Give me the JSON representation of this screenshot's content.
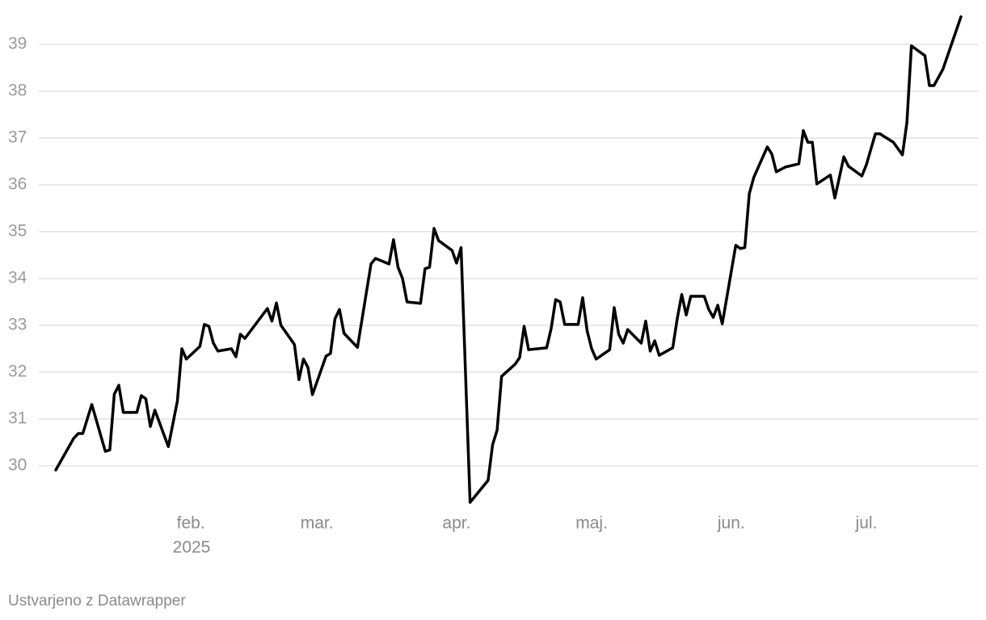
{
  "chart_data": {
    "type": "line",
    "x": [
      2,
      6,
      7,
      8,
      10,
      13,
      14,
      15,
      16,
      17,
      20,
      21,
      22,
      23,
      24,
      27,
      29,
      30,
      31,
      34,
      35,
      36,
      37,
      38,
      41,
      42,
      43,
      44,
      49,
      50,
      51,
      52,
      55,
      56,
      57,
      58,
      59,
      62,
      63,
      64,
      65,
      66,
      69,
      72,
      73,
      76,
      77,
      78,
      79,
      80,
      83,
      84,
      85,
      86,
      87,
      90,
      91,
      92,
      94,
      98,
      99,
      100,
      101,
      104,
      105,
      106,
      107,
      111,
      112,
      113,
      114,
      115,
      118,
      119,
      120,
      121,
      122,
      125,
      126,
      127,
      128,
      129,
      132,
      133,
      134,
      135,
      136,
      139,
      140,
      141,
      142,
      143,
      146,
      147,
      148,
      149,
      150,
      153,
      154,
      155,
      156,
      157,
      160,
      161,
      162,
      164,
      167,
      168,
      169,
      170,
      171,
      174,
      175,
      177,
      178,
      181,
      182,
      184,
      185,
      188,
      190,
      191,
      192,
      195,
      196,
      197,
      199,
      202,
      203
    ],
    "values": [
      29.91,
      30.59,
      30.69,
      30.69,
      31.31,
      30.31,
      30.34,
      31.53,
      31.72,
      31.14,
      31.14,
      31.5,
      31.43,
      30.84,
      31.19,
      30.41,
      31.38,
      32.5,
      32.28,
      32.55,
      33.02,
      32.98,
      32.62,
      32.45,
      32.5,
      32.33,
      32.81,
      32.72,
      33.36,
      33.09,
      33.48,
      33.0,
      32.59,
      31.84,
      32.28,
      32.1,
      31.52,
      32.34,
      32.4,
      33.14,
      33.34,
      32.83,
      32.53,
      34.31,
      34.43,
      34.31,
      34.83,
      34.24,
      34.0,
      33.5,
      33.47,
      34.21,
      34.24,
      35.07,
      34.81,
      34.6,
      34.33,
      34.66,
      29.22,
      29.69,
      30.45,
      30.76,
      31.91,
      32.17,
      32.31,
      32.98,
      32.48,
      32.52,
      32.93,
      33.55,
      33.5,
      33.02,
      33.02,
      33.59,
      32.88,
      32.5,
      32.28,
      32.48,
      33.38,
      32.81,
      32.62,
      32.91,
      32.62,
      33.09,
      32.45,
      32.67,
      32.36,
      32.52,
      33.14,
      33.66,
      33.22,
      33.62,
      33.62,
      33.34,
      33.17,
      33.43,
      33.03,
      34.71,
      34.64,
      34.66,
      35.81,
      36.16,
      36.81,
      36.66,
      36.28,
      36.38,
      36.45,
      37.16,
      36.91,
      36.91,
      36.02,
      36.21,
      35.72,
      36.6,
      36.4,
      36.19,
      36.43,
      37.09,
      37.09,
      36.91,
      36.64,
      37.33,
      38.97,
      38.76,
      38.12,
      38.12,
      38.47,
      39.31,
      39.59
    ],
    "color": "#000000",
    "xlim": [
      2,
      203
    ],
    "xticks": [
      {
        "value": 32,
        "label": "feb."
      },
      {
        "value": 60,
        "label": "mar."
      },
      {
        "value": 91,
        "label": "apr."
      },
      {
        "value": 121,
        "label": "maj."
      },
      {
        "value": 152,
        "label": "jun."
      },
      {
        "value": 182,
        "label": "jul."
      }
    ],
    "year_label": "2025",
    "ylim": [
      29,
      39.6
    ],
    "yticks": [
      30,
      31,
      32,
      33,
      34,
      35,
      36,
      37,
      38,
      39
    ],
    "grid": true,
    "credit": "Ustvarjeno z Datawrapper"
  }
}
